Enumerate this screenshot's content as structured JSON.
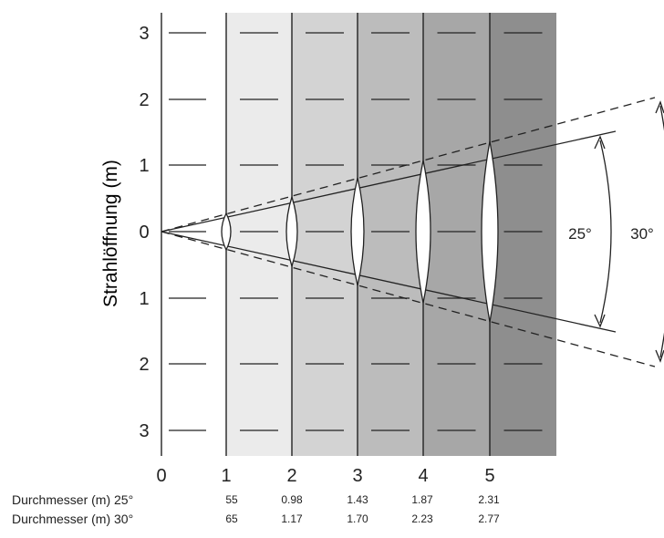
{
  "y_axis_label": "Strahlöffnung (m)",
  "y_ticks": [
    "3",
    "2",
    "1",
    "0",
    "1",
    "2",
    "3"
  ],
  "x_ticks": [
    "0",
    "1",
    "2",
    "3",
    "4",
    "5"
  ],
  "angle_labels": [
    "25°",
    "30°"
  ],
  "zone_colors": [
    "#ebebeb",
    "#d3d3d3",
    "#bcbcbc",
    "#a7a7a7",
    "#8e8e8e"
  ],
  "table": {
    "rows": [
      {
        "label": "Durchmesser (m) 25°",
        "values": [
          "55",
          "0.98",
          "1.43",
          "1.87",
          "2.31"
        ]
      },
      {
        "label": "Durchmesser (m) 30°",
        "values": [
          "65",
          "1.17",
          "1.70",
          "2.23",
          "2.77"
        ]
      }
    ]
  }
}
